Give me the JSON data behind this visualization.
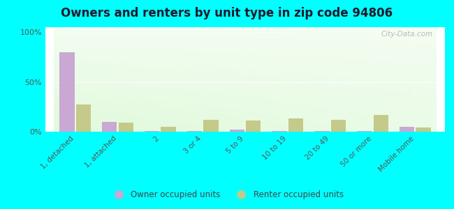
{
  "title": "Owners and renters by unit type in zip code 94806",
  "categories": [
    "1, detached",
    "1, attached",
    "2",
    "3 or 4",
    "5 to 9",
    "10 to 19",
    "20 to 49",
    "50 or more",
    "Mobile home"
  ],
  "owner_values": [
    80,
    10,
    1,
    1,
    2,
    1,
    1,
    1,
    5
  ],
  "renter_values": [
    27,
    9,
    5,
    12,
    11,
    13,
    12,
    17,
    4
  ],
  "owner_color": "#c9a8d4",
  "renter_color": "#c5c98a",
  "owner_label": "Owner occupied units",
  "renter_label": "Renter occupied units",
  "background_outer": "#00ffff",
  "yticks": [
    0,
    50,
    100
  ],
  "ylim": [
    0,
    105
  ],
  "title_fontsize": 12,
  "watermark": "City-Data.com"
}
